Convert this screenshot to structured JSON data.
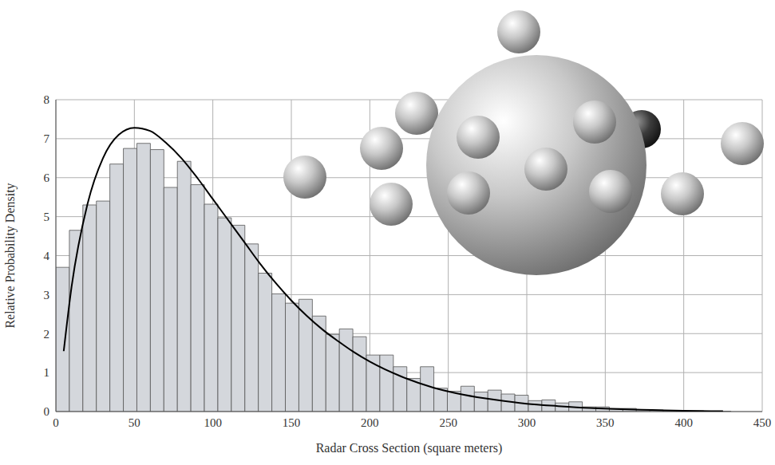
{
  "chart_data": {
    "type": "histogram",
    "x_label": "Radar Cross Section (square meters)",
    "y_label": "Relative Probability Density",
    "bins": [
      0,
      8.6,
      17.2,
      25.8,
      34.4,
      43,
      51.6,
      60.2,
      68.8,
      77.4,
      86,
      94.6,
      103.2,
      111.8,
      120.4,
      129,
      137.6,
      146.2,
      154.8,
      163.4,
      172,
      180.6,
      189.2,
      197.8,
      206.4,
      215,
      223.6,
      232.2,
      240.8,
      249.4,
      258,
      266.6,
      275.2,
      283.8,
      292.4,
      301,
      309.6,
      318.2,
      326.8,
      335.4,
      344,
      352.6,
      361.2,
      369.8,
      378.4,
      387,
      395.6,
      404.2,
      412.8,
      421.4,
      430
    ],
    "counts": [
      3.7,
      4.65,
      5.3,
      5.4,
      6.35,
      6.75,
      6.88,
      6.72,
      5.75,
      6.42,
      5.82,
      5.32,
      4.97,
      4.78,
      4.3,
      3.55,
      3.02,
      2.78,
      2.88,
      2.45,
      1.98,
      2.12,
      1.92,
      1.45,
      1.45,
      1.15,
      0.85,
      1.15,
      0.6,
      0.52,
      0.65,
      0.5,
      0.55,
      0.45,
      0.42,
      0.28,
      0.3,
      0.22,
      0.25,
      0.12,
      0.12,
      0.08,
      0.08,
      0.05,
      0.04,
      0.03,
      0.02,
      0.02,
      0.01,
      0.01
    ],
    "color": "#d4d7dc",
    "curve": {
      "type": "line",
      "color": "#000000",
      "x": [
        5,
        10,
        20,
        30,
        40,
        50,
        60,
        70,
        80,
        90,
        100,
        110,
        120,
        130,
        140,
        150,
        160,
        170,
        180,
        190,
        200,
        220,
        240,
        260,
        280,
        300,
        320,
        340,
        360,
        380,
        400,
        425
      ],
      "values": [
        1.55,
        3.2,
        5.3,
        6.5,
        7.1,
        7.28,
        7.2,
        6.9,
        6.5,
        6.0,
        5.45,
        4.9,
        4.35,
        3.8,
        3.3,
        2.85,
        2.45,
        2.1,
        1.8,
        1.52,
        1.28,
        0.9,
        0.62,
        0.43,
        0.3,
        0.2,
        0.14,
        0.09,
        0.06,
        0.04,
        0.02,
        0.01
      ]
    },
    "xlim": [
      0,
      450
    ],
    "xticks": [
      0,
      50,
      100,
      150,
      200,
      250,
      300,
      350,
      400,
      450
    ],
    "ylim": [
      0,
      8
    ],
    "yticks": [
      0,
      1,
      2,
      3,
      4,
      5,
      6,
      7,
      8
    ],
    "grid": true
  }
}
